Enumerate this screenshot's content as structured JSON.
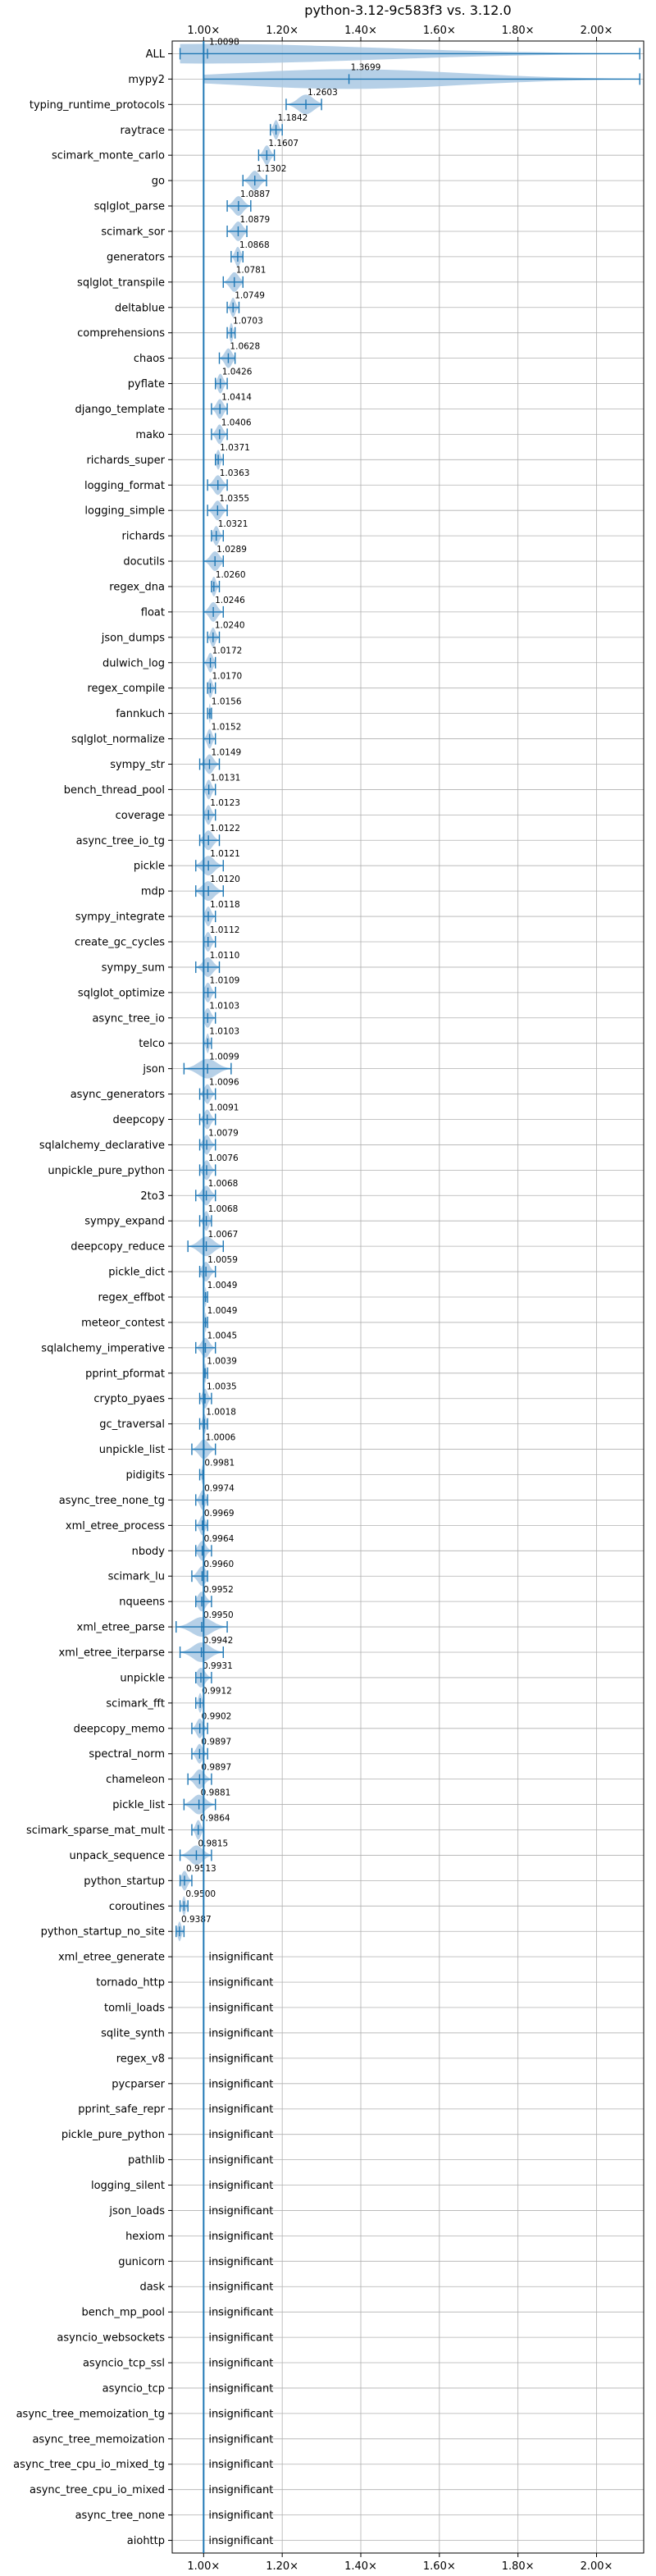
{
  "chart_data": {
    "type": "violin",
    "title": "python-3.12-9c583f3 vs. 3.12.0",
    "xlim": [
      0.92,
      2.12
    ],
    "reference_line": 1.0,
    "grid": true,
    "x_ticks": [
      {
        "value": 1.0,
        "label": "1.00×"
      },
      {
        "value": 1.2,
        "label": "1.20×"
      },
      {
        "value": 1.4,
        "label": "1.40×"
      },
      {
        "value": 1.6,
        "label": "1.60×"
      },
      {
        "value": 1.8,
        "label": "1.80×"
      },
      {
        "value": 2.0,
        "label": "2.00×"
      }
    ],
    "colors": {
      "violin": "#a9c8e3",
      "line": "#1f77b4",
      "grid": "#b0b0b0"
    },
    "insignificant_text": "insignificant",
    "benchmarks": [
      {
        "name": "ALL",
        "value": 1.0098,
        "label": "1.0098",
        "min": 0.94,
        "max": 2.11
      },
      {
        "name": "mypy2",
        "value": 1.3699,
        "label": "1.3699",
        "min": 1.0,
        "max": 2.11
      },
      {
        "name": "typing_runtime_protocols",
        "value": 1.2603,
        "label": "1.2603",
        "min": 1.21,
        "max": 1.3
      },
      {
        "name": "raytrace",
        "value": 1.1842,
        "label": "1.1842",
        "min": 1.17,
        "max": 1.2
      },
      {
        "name": "scimark_monte_carlo",
        "value": 1.1607,
        "label": "1.1607",
        "min": 1.14,
        "max": 1.18
      },
      {
        "name": "go",
        "value": 1.1302,
        "label": "1.1302",
        "min": 1.1,
        "max": 1.16
      },
      {
        "name": "sqlglot_parse",
        "value": 1.0887,
        "label": "1.0887",
        "min": 1.06,
        "max": 1.12
      },
      {
        "name": "scimark_sor",
        "value": 1.0879,
        "label": "1.0879",
        "min": 1.06,
        "max": 1.11
      },
      {
        "name": "generators",
        "value": 1.0868,
        "label": "1.0868",
        "min": 1.07,
        "max": 1.1
      },
      {
        "name": "sqlglot_transpile",
        "value": 1.0781,
        "label": "1.0781",
        "min": 1.05,
        "max": 1.1
      },
      {
        "name": "deltablue",
        "value": 1.0749,
        "label": "1.0749",
        "min": 1.06,
        "max": 1.09
      },
      {
        "name": "comprehensions",
        "value": 1.0703,
        "label": "1.0703",
        "min": 1.06,
        "max": 1.08
      },
      {
        "name": "chaos",
        "value": 1.0628,
        "label": "1.0628",
        "min": 1.04,
        "max": 1.08
      },
      {
        "name": "pyflate",
        "value": 1.0426,
        "label": "1.0426",
        "min": 1.03,
        "max": 1.06
      },
      {
        "name": "django_template",
        "value": 1.0414,
        "label": "1.0414",
        "min": 1.02,
        "max": 1.06
      },
      {
        "name": "mako",
        "value": 1.0406,
        "label": "1.0406",
        "min": 1.02,
        "max": 1.06
      },
      {
        "name": "richards_super",
        "value": 1.0371,
        "label": "1.0371",
        "min": 1.03,
        "max": 1.05
      },
      {
        "name": "logging_format",
        "value": 1.0363,
        "label": "1.0363",
        "min": 1.01,
        "max": 1.06
      },
      {
        "name": "logging_simple",
        "value": 1.0355,
        "label": "1.0355",
        "min": 1.01,
        "max": 1.06
      },
      {
        "name": "richards",
        "value": 1.0321,
        "label": "1.0321",
        "min": 1.02,
        "max": 1.05
      },
      {
        "name": "docutils",
        "value": 1.0289,
        "label": "1.0289",
        "min": 1.0,
        "max": 1.05
      },
      {
        "name": "regex_dna",
        "value": 1.026,
        "label": "1.0260",
        "min": 1.02,
        "max": 1.04
      },
      {
        "name": "float",
        "value": 1.0246,
        "label": "1.0246",
        "min": 1.0,
        "max": 1.05
      },
      {
        "name": "json_dumps",
        "value": 1.024,
        "label": "1.0240",
        "min": 1.01,
        "max": 1.04
      },
      {
        "name": "dulwich_log",
        "value": 1.0172,
        "label": "1.0172",
        "min": 1.0,
        "max": 1.03
      },
      {
        "name": "regex_compile",
        "value": 1.017,
        "label": "1.0170",
        "min": 1.01,
        "max": 1.03
      },
      {
        "name": "fannkuch",
        "value": 1.0156,
        "label": "1.0156",
        "min": 1.01,
        "max": 1.02
      },
      {
        "name": "sqlglot_normalize",
        "value": 1.0152,
        "label": "1.0152",
        "min": 1.0,
        "max": 1.03
      },
      {
        "name": "sympy_str",
        "value": 1.0149,
        "label": "1.0149",
        "min": 0.99,
        "max": 1.04
      },
      {
        "name": "bench_thread_pool",
        "value": 1.0131,
        "label": "1.0131",
        "min": 1.0,
        "max": 1.03
      },
      {
        "name": "coverage",
        "value": 1.0123,
        "label": "1.0123",
        "min": 1.0,
        "max": 1.03
      },
      {
        "name": "async_tree_io_tg",
        "value": 1.0122,
        "label": "1.0122",
        "min": 0.99,
        "max": 1.04
      },
      {
        "name": "pickle",
        "value": 1.0121,
        "label": "1.0121",
        "min": 0.98,
        "max": 1.05
      },
      {
        "name": "mdp",
        "value": 1.012,
        "label": "1.0120",
        "min": 0.98,
        "max": 1.05
      },
      {
        "name": "sympy_integrate",
        "value": 1.0118,
        "label": "1.0118",
        "min": 1.0,
        "max": 1.03
      },
      {
        "name": "create_gc_cycles",
        "value": 1.0112,
        "label": "1.0112",
        "min": 1.0,
        "max": 1.03
      },
      {
        "name": "sympy_sum",
        "value": 1.011,
        "label": "1.0110",
        "min": 0.98,
        "max": 1.04
      },
      {
        "name": "sqlglot_optimize",
        "value": 1.0109,
        "label": "1.0109",
        "min": 1.0,
        "max": 1.03
      },
      {
        "name": "async_tree_io",
        "value": 1.0103,
        "label": "1.0103",
        "min": 1.0,
        "max": 1.03
      },
      {
        "name": "telco",
        "value": 1.0103,
        "label": "1.0103",
        "min": 1.0,
        "max": 1.02
      },
      {
        "name": "json",
        "value": 1.0099,
        "label": "1.0099",
        "min": 0.95,
        "max": 1.07
      },
      {
        "name": "async_generators",
        "value": 1.0096,
        "label": "1.0096",
        "min": 0.99,
        "max": 1.03
      },
      {
        "name": "deepcopy",
        "value": 1.0091,
        "label": "1.0091",
        "min": 0.99,
        "max": 1.03
      },
      {
        "name": "sqlalchemy_declarative",
        "value": 1.0079,
        "label": "1.0079",
        "min": 0.99,
        "max": 1.03
      },
      {
        "name": "unpickle_pure_python",
        "value": 1.0076,
        "label": "1.0076",
        "min": 0.99,
        "max": 1.03
      },
      {
        "name": "2to3",
        "value": 1.0068,
        "label": "1.0068",
        "min": 0.98,
        "max": 1.03
      },
      {
        "name": "sympy_expand",
        "value": 1.0068,
        "label": "1.0068",
        "min": 0.99,
        "max": 1.02
      },
      {
        "name": "deepcopy_reduce",
        "value": 1.0067,
        "label": "1.0067",
        "min": 0.96,
        "max": 1.05
      },
      {
        "name": "pickle_dict",
        "value": 1.0059,
        "label": "1.0059",
        "min": 0.99,
        "max": 1.03
      },
      {
        "name": "regex_effbot",
        "value": 1.0049,
        "label": "1.0049",
        "min": 1.0,
        "max": 1.01
      },
      {
        "name": "meteor_contest",
        "value": 1.0049,
        "label": "1.0049",
        "min": 1.0,
        "max": 1.01
      },
      {
        "name": "sqlalchemy_imperative",
        "value": 1.0045,
        "label": "1.0045",
        "min": 0.98,
        "max": 1.03
      },
      {
        "name": "pprint_pformat",
        "value": 1.0039,
        "label": "1.0039",
        "min": 1.0,
        "max": 1.01
      },
      {
        "name": "crypto_pyaes",
        "value": 1.0035,
        "label": "1.0035",
        "min": 0.99,
        "max": 1.02
      },
      {
        "name": "gc_traversal",
        "value": 1.0018,
        "label": "1.0018",
        "min": 0.99,
        "max": 1.01
      },
      {
        "name": "unpickle_list",
        "value": 1.0006,
        "label": "1.0006",
        "min": 0.97,
        "max": 1.03
      },
      {
        "name": "pidigits",
        "value": 0.9981,
        "label": "0.9981",
        "min": 0.99,
        "max": 1.0
      },
      {
        "name": "async_tree_none_tg",
        "value": 0.9974,
        "label": "0.9974",
        "min": 0.98,
        "max": 1.01
      },
      {
        "name": "xml_etree_process",
        "value": 0.9969,
        "label": "0.9969",
        "min": 0.98,
        "max": 1.01
      },
      {
        "name": "nbody",
        "value": 0.9964,
        "label": "0.9964",
        "min": 0.98,
        "max": 1.02
      },
      {
        "name": "scimark_lu",
        "value": 0.996,
        "label": "0.9960",
        "min": 0.97,
        "max": 1.01
      },
      {
        "name": "nqueens",
        "value": 0.9952,
        "label": "0.9952",
        "min": 0.98,
        "max": 1.02
      },
      {
        "name": "xml_etree_parse",
        "value": 0.995,
        "label": "0.9950",
        "min": 0.93,
        "max": 1.06
      },
      {
        "name": "xml_etree_iterparse",
        "value": 0.9942,
        "label": "0.9942",
        "min": 0.94,
        "max": 1.05
      },
      {
        "name": "unpickle",
        "value": 0.9931,
        "label": "0.9931",
        "min": 0.98,
        "max": 1.02
      },
      {
        "name": "scimark_fft",
        "value": 0.9912,
        "label": "0.9912",
        "min": 0.98,
        "max": 1.0
      },
      {
        "name": "deepcopy_memo",
        "value": 0.9902,
        "label": "0.9902",
        "min": 0.97,
        "max": 1.01
      },
      {
        "name": "spectral_norm",
        "value": 0.9897,
        "label": "0.9897",
        "min": 0.97,
        "max": 1.01
      },
      {
        "name": "chameleon",
        "value": 0.9897,
        "label": "0.9897",
        "min": 0.96,
        "max": 1.02
      },
      {
        "name": "pickle_list",
        "value": 0.9881,
        "label": "0.9881",
        "min": 0.95,
        "max": 1.03
      },
      {
        "name": "scimark_sparse_mat_mult",
        "value": 0.9864,
        "label": "0.9864",
        "min": 0.97,
        "max": 1.0
      },
      {
        "name": "unpack_sequence",
        "value": 0.9815,
        "label": "0.9815",
        "min": 0.94,
        "max": 1.02
      },
      {
        "name": "python_startup",
        "value": 0.9513,
        "label": "0.9513",
        "min": 0.94,
        "max": 0.97
      },
      {
        "name": "coroutines",
        "value": 0.95,
        "label": "0.9500",
        "min": 0.94,
        "max": 0.96
      },
      {
        "name": "python_startup_no_site",
        "value": 0.9387,
        "label": "0.9387",
        "min": 0.93,
        "max": 0.95
      },
      {
        "name": "xml_etree_generate",
        "insignificant": true
      },
      {
        "name": "tornado_http",
        "insignificant": true
      },
      {
        "name": "tomli_loads",
        "insignificant": true
      },
      {
        "name": "sqlite_synth",
        "insignificant": true
      },
      {
        "name": "regex_v8",
        "insignificant": true
      },
      {
        "name": "pycparser",
        "insignificant": true
      },
      {
        "name": "pprint_safe_repr",
        "insignificant": true
      },
      {
        "name": "pickle_pure_python",
        "insignificant": true
      },
      {
        "name": "pathlib",
        "insignificant": true
      },
      {
        "name": "logging_silent",
        "insignificant": true
      },
      {
        "name": "json_loads",
        "insignificant": true
      },
      {
        "name": "hexiom",
        "insignificant": true
      },
      {
        "name": "gunicorn",
        "insignificant": true
      },
      {
        "name": "dask",
        "insignificant": true
      },
      {
        "name": "bench_mp_pool",
        "insignificant": true
      },
      {
        "name": "asyncio_websockets",
        "insignificant": true
      },
      {
        "name": "asyncio_tcp_ssl",
        "insignificant": true
      },
      {
        "name": "asyncio_tcp",
        "insignificant": true
      },
      {
        "name": "async_tree_memoization_tg",
        "insignificant": true
      },
      {
        "name": "async_tree_memoization",
        "insignificant": true
      },
      {
        "name": "async_tree_cpu_io_mixed_tg",
        "insignificant": true
      },
      {
        "name": "async_tree_cpu_io_mixed",
        "insignificant": true
      },
      {
        "name": "async_tree_none",
        "insignificant": true
      },
      {
        "name": "aiohttp",
        "insignificant": true
      }
    ]
  }
}
